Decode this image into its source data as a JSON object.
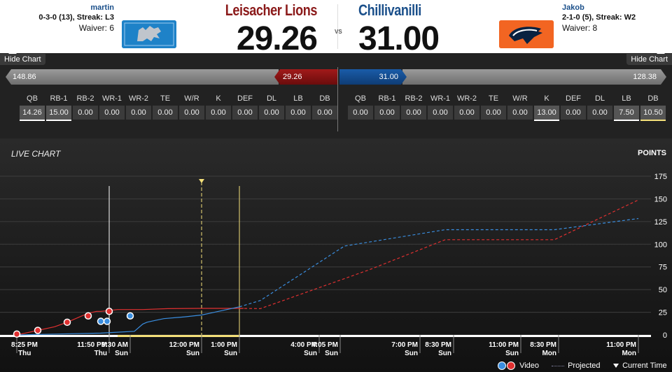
{
  "home": {
    "team_name": "Leisacher Lions",
    "owner": "martin",
    "record": "0-3-0 (13), Streak:",
    "streak": "L3",
    "waiver": "Waiver: 6",
    "score": "29.26",
    "projected": "148.86",
    "bar_score": "29.26",
    "color": "#8b1a1a"
  },
  "away": {
    "team_name": "Chillivanilli",
    "owner": "Jakob",
    "record": "2-1-0 (5), Streak:",
    "streak": "W2",
    "waiver": "Waiver: 8",
    "score": "31.00",
    "projected": "128.38",
    "bar_score": "31.00",
    "color": "#1a4f8a"
  },
  "vs": "VS",
  "hide_chart": "Hide Chart",
  "positions": [
    "QB",
    "RB-1",
    "RB-2",
    "WR-1",
    "WR-2",
    "TE",
    "W/R",
    "K",
    "DEF",
    "DL",
    "LB",
    "DB"
  ],
  "home_pos_values": [
    "14.26",
    "15.00",
    "0.00",
    "0.00",
    "0.00",
    "0.00",
    "0.00",
    "0.00",
    "0.00",
    "0.00",
    "0.00",
    "0.00"
  ],
  "away_pos_values": [
    "0.00",
    "0.00",
    "0.00",
    "0.00",
    "0.00",
    "0.00",
    "0.00",
    "13.00",
    "0.00",
    "0.00",
    "7.50",
    "10.50"
  ],
  "chart": {
    "title": "LIVE CHART",
    "points_label": "POINTS",
    "y_ticks": [
      "175",
      "150",
      "125",
      "100",
      "75",
      "50",
      "25",
      "0"
    ],
    "x_labels": [
      {
        "time": "8:25 PM",
        "day": "Thu"
      },
      {
        "time": "11:50 PM",
        "day": "Thu"
      },
      {
        "time": "9:30 AM",
        "day": "Sun"
      },
      {
        "time": "12:00 PM",
        "day": "Sun"
      },
      {
        "time": "1:00 PM",
        "day": "Sun"
      },
      {
        "time": "4:00 PM",
        "day": "Sun"
      },
      {
        "time": "4:05 PM",
        "day": "Sun"
      },
      {
        "time": "7:00 PM",
        "day": "Sun"
      },
      {
        "time": "8:30 PM",
        "day": "Sun"
      },
      {
        "time": "11:00 PM",
        "day": "Sun"
      },
      {
        "time": "8:30 PM",
        "day": "Mon"
      },
      {
        "time": "11:00 PM",
        "day": "Mon"
      }
    ]
  },
  "chart_data": {
    "type": "line",
    "title": "LIVE CHART",
    "ylabel": "POINTS",
    "ylim": [
      0,
      175
    ],
    "series": [
      {
        "name": "home-actual",
        "style": "solid",
        "color": "#e03030",
        "values": [
          [
            0,
            0
          ],
          [
            2,
            2
          ],
          [
            5,
            5
          ],
          [
            9,
            9
          ],
          [
            12,
            14
          ],
          [
            14,
            18
          ],
          [
            15,
            20
          ],
          [
            17,
            24
          ],
          [
            19,
            26
          ],
          [
            20,
            26
          ],
          [
            22,
            27
          ],
          [
            24,
            28
          ],
          [
            26,
            28
          ],
          [
            30,
            28
          ],
          [
            36,
            29
          ],
          [
            44,
            29.26
          ],
          [
            54,
            29.26
          ]
        ]
      },
      {
        "name": "away-actual",
        "style": "solid",
        "color": "#3a8ee0",
        "values": [
          [
            0,
            0
          ],
          [
            10,
            1
          ],
          [
            20,
            2
          ],
          [
            28,
            4
          ],
          [
            30,
            12
          ],
          [
            31,
            14
          ],
          [
            33,
            16
          ],
          [
            35,
            18
          ],
          [
            40,
            20
          ],
          [
            44,
            22
          ],
          [
            46,
            24
          ],
          [
            48,
            26
          ],
          [
            50,
            28
          ],
          [
            53,
            31
          ]
        ]
      },
      {
        "name": "home-projected",
        "style": "dashed",
        "color": "#e03030",
        "values": [
          [
            53,
            29.26
          ],
          [
            58,
            29
          ],
          [
            84,
            72
          ],
          [
            102,
            105
          ],
          [
            128,
            105
          ],
          [
            148,
            148.86
          ]
        ]
      },
      {
        "name": "away-projected",
        "style": "dashed",
        "color": "#3a8ee0",
        "values": [
          [
            53,
            31
          ],
          [
            58,
            38
          ],
          [
            78,
            98
          ],
          [
            102,
            116
          ],
          [
            128,
            116
          ],
          [
            148,
            128.38
          ]
        ]
      }
    ]
  },
  "legend": {
    "video": "Video",
    "projected": "Projected",
    "current_time": "Current Time"
  }
}
